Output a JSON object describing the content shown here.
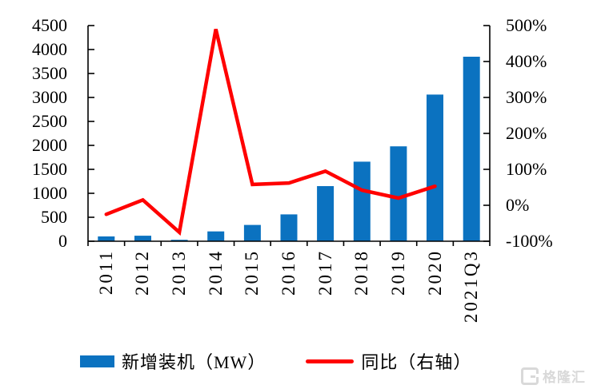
{
  "chart_data": {
    "type": "bar",
    "combo": "bar+line",
    "title": "",
    "categories": [
      "2011",
      "2012",
      "2013",
      "2014",
      "2015",
      "2016",
      "2017",
      "2018",
      "2019",
      "2020",
      "2021Q3"
    ],
    "series": [
      {
        "name": "新增装机（MW）",
        "type": "bar",
        "axis": "left",
        "color": "#0B72C0",
        "values": [
          100,
          115,
          30,
          205,
          340,
          560,
          1150,
          1660,
          1980,
          3060,
          3850
        ]
      },
      {
        "name": "同比（右轴）",
        "type": "line",
        "axis": "right",
        "color": "#FF0000",
        "values": [
          -25,
          15,
          -75,
          490,
          58,
          62,
          95,
          42,
          20,
          53,
          null
        ]
      }
    ],
    "left_axis": {
      "min": 0,
      "max": 4500,
      "step": 500,
      "labels": [
        "0",
        "500",
        "1000",
        "1500",
        "2000",
        "2500",
        "3000",
        "3500",
        "4000",
        "4500"
      ]
    },
    "right_axis": {
      "min": -100,
      "max": 500,
      "step": 100,
      "labels": [
        "-100%",
        "0%",
        "100%",
        "200%",
        "300%",
        "400%",
        "500%"
      ]
    },
    "grid": false,
    "legend_position": "bottom"
  },
  "watermark": {
    "text": "格隆汇"
  },
  "colors": {
    "bar": "#0B72C0",
    "line": "#FF0000",
    "axis": "#000000",
    "watermark": "#D9D9D9"
  }
}
